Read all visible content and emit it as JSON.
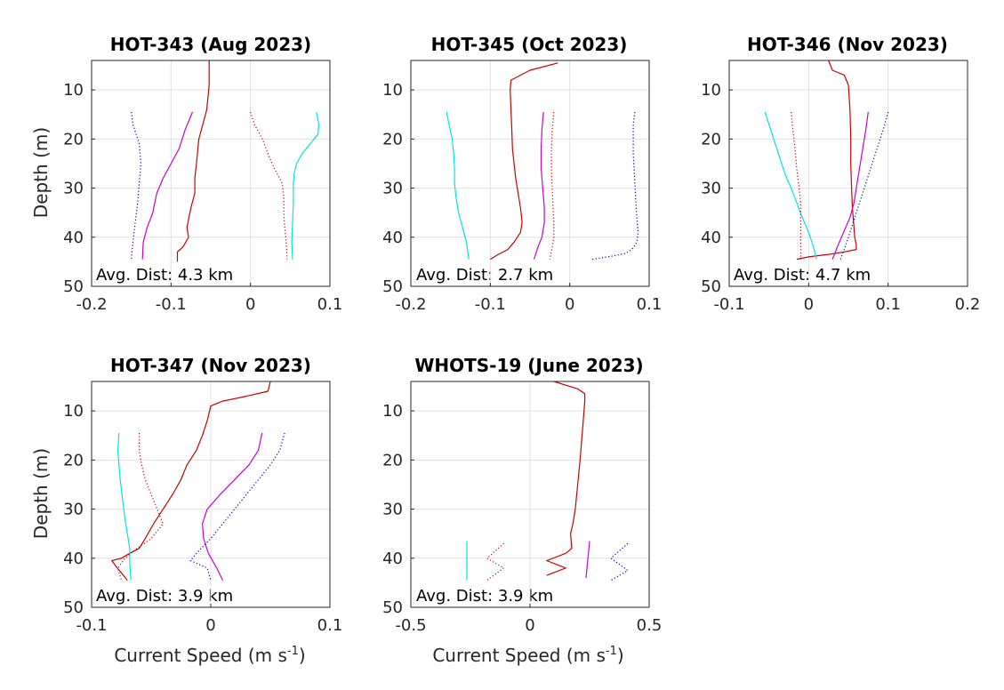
{
  "colors": {
    "red": "#cc0000",
    "magenta": "#cc00cc",
    "cyan": "#00e5e5",
    "blue": "#0000cc"
  },
  "chart_data": [
    {
      "type": "line",
      "title": "HOT-343 (Aug 2023)",
      "xlabel": "",
      "ylabel": "Depth (m)",
      "xlim": [
        -0.2,
        0.1
      ],
      "ylim": [
        50,
        4
      ],
      "y_reversed": true,
      "xticks": [
        "-0.2",
        "-0.1",
        "0",
        "0.1"
      ],
      "yticks": [
        "10",
        "20",
        "30",
        "40",
        "50"
      ],
      "grid": true,
      "annotation": "Avg. Dist: 4.3 km",
      "series": [
        {
          "color": "red",
          "style": "solid",
          "x": [
            -0.052,
            -0.052,
            -0.055,
            -0.06,
            -0.065,
            -0.068,
            -0.07,
            -0.07,
            -0.075,
            -0.08,
            -0.078,
            -0.085,
            -0.092,
            -0.092
          ],
          "y": [
            4,
            9,
            14,
            17,
            20,
            25,
            28,
            31,
            34,
            38,
            40,
            42,
            43,
            45
          ]
        },
        {
          "color": "magenta",
          "style": "solid",
          "x": [
            -0.073,
            -0.082,
            -0.09,
            -0.1,
            -0.11,
            -0.118,
            -0.123,
            -0.13,
            -0.135,
            -0.136
          ],
          "y": [
            14.5,
            18,
            22,
            25,
            28,
            31,
            35,
            38,
            41,
            44.5
          ]
        },
        {
          "color": "blue",
          "style": "dotted",
          "x": [
            -0.15,
            -0.148,
            -0.14,
            -0.138,
            -0.14,
            -0.142,
            -0.145,
            -0.148,
            -0.15
          ],
          "y": [
            14.5,
            17,
            21,
            25,
            29,
            33,
            37,
            41,
            44.5
          ]
        },
        {
          "color": "red",
          "style": "dotted",
          "x": [
            0.0,
            0.005,
            0.015,
            0.022,
            0.03,
            0.04,
            0.042,
            0.042,
            0.043,
            0.045,
            0.046
          ],
          "y": [
            14.5,
            17,
            20,
            23,
            26,
            29,
            32,
            35,
            38,
            41,
            44.5
          ]
        },
        {
          "color": "cyan",
          "style": "solid",
          "x": [
            0.083,
            0.086,
            0.085,
            0.075,
            0.065,
            0.058,
            0.055,
            0.054,
            0.054,
            0.053,
            0.052,
            0.053
          ],
          "y": [
            14.5,
            17,
            19,
            21,
            23,
            25,
            27,
            29,
            33,
            37,
            41,
            44.5
          ]
        }
      ]
    },
    {
      "type": "line",
      "title": "HOT-345 (Oct 2023)",
      "xlabel": "",
      "ylabel": "",
      "xlim": [
        -0.2,
        0.1
      ],
      "ylim": [
        50,
        4
      ],
      "y_reversed": true,
      "xticks": [
        "-0.2",
        "-0.1",
        "0",
        "0.1"
      ],
      "yticks": [
        "10",
        "20",
        "30",
        "40",
        "50"
      ],
      "grid": true,
      "annotation": "Avg. Dist: 2.7 km",
      "series": [
        {
          "color": "red",
          "style": "solid",
          "x": [
            -0.015,
            -0.05,
            -0.074,
            -0.075,
            -0.074,
            -0.073,
            -0.072,
            -0.07,
            -0.068,
            -0.065,
            -0.062,
            -0.06,
            -0.062,
            -0.07,
            -0.078,
            -0.09,
            -0.1
          ],
          "y": [
            4.5,
            6,
            8,
            10,
            14,
            18,
            22,
            25,
            28,
            31,
            34,
            37,
            39,
            41,
            42.5,
            43.5,
            44.5
          ]
        },
        {
          "color": "magenta",
          "style": "solid",
          "x": [
            -0.033,
            -0.035,
            -0.036,
            -0.036,
            -0.034,
            -0.032,
            -0.032,
            -0.035,
            -0.04,
            -0.045
          ],
          "y": [
            14.5,
            18,
            22,
            26,
            30,
            34,
            37,
            40,
            42,
            44.5
          ]
        },
        {
          "color": "red",
          "style": "dotted",
          "x": [
            -0.02,
            -0.022,
            -0.023,
            -0.023,
            -0.022,
            -0.021,
            -0.02,
            -0.02,
            -0.022,
            -0.025
          ],
          "y": [
            14.5,
            18,
            22,
            26,
            30,
            34,
            37,
            40,
            42,
            44.5
          ]
        },
        {
          "color": "cyan",
          "style": "solid",
          "x": [
            -0.155,
            -0.152,
            -0.148,
            -0.146,
            -0.145,
            -0.145,
            -0.143,
            -0.14,
            -0.135,
            -0.13,
            -0.127
          ],
          "y": [
            14.5,
            17,
            20,
            23,
            26,
            29,
            32,
            35,
            38,
            41,
            44.5
          ]
        },
        {
          "color": "blue",
          "style": "dotted",
          "x": [
            0.082,
            0.08,
            0.08,
            0.08,
            0.081,
            0.082,
            0.083,
            0.084,
            0.085,
            0.086,
            0.085,
            0.083,
            0.078,
            0.07,
            0.055,
            0.04,
            0.028
          ],
          "y": [
            14.5,
            17,
            20,
            23,
            26,
            29,
            32,
            35,
            37,
            39,
            40.5,
            41.5,
            42.5,
            43.3,
            43.8,
            44.2,
            44.5
          ]
        }
      ]
    },
    {
      "type": "line",
      "title": "HOT-346 (Nov 2023)",
      "xlabel": "",
      "ylabel": "",
      "xlim": [
        -0.1,
        0.2
      ],
      "ylim": [
        50,
        4
      ],
      "y_reversed": true,
      "xticks": [
        "-0.1",
        "0",
        "0.1",
        "0.2"
      ],
      "yticks": [
        "10",
        "20",
        "30",
        "40",
        "50"
      ],
      "grid": true,
      "annotation": "Avg. Dist: 4.7 km",
      "series": [
        {
          "color": "red",
          "style": "solid",
          "x": [
            0.025,
            0.03,
            0.045,
            0.05,
            0.052,
            0.053,
            0.053,
            0.054,
            0.055,
            0.057,
            0.058,
            0.06,
            0.06,
            0.045,
            0.025,
            0.0,
            -0.015
          ],
          "y": [
            4,
            6,
            7,
            9,
            14,
            20,
            25,
            30,
            34,
            38,
            40,
            41.5,
            42.5,
            43,
            43.5,
            44,
            44.5
          ]
        },
        {
          "color": "magenta",
          "style": "solid",
          "x": [
            0.075,
            0.072,
            0.069,
            0.066,
            0.063,
            0.06,
            0.057,
            0.052,
            0.044,
            0.036,
            0.03
          ],
          "y": [
            14.5,
            18,
            21,
            24,
            27,
            30,
            33,
            36,
            39,
            42,
            44.5
          ]
        },
        {
          "color": "blue",
          "style": "dotted",
          "x": [
            0.1,
            0.094,
            0.088,
            0.082,
            0.076,
            0.07,
            0.064,
            0.058,
            0.052,
            0.046,
            0.04
          ],
          "y": [
            14.5,
            18,
            21,
            24,
            27,
            30,
            33,
            36,
            39,
            42,
            44.5
          ]
        },
        {
          "color": "cyan",
          "style": "solid",
          "x": [
            -0.055,
            -0.048,
            -0.042,
            -0.036,
            -0.03,
            -0.022,
            -0.015,
            -0.008,
            0.0,
            0.006,
            0.01
          ],
          "y": [
            14.5,
            18,
            21,
            24,
            27,
            30,
            33,
            36,
            39,
            42,
            44.5
          ]
        },
        {
          "color": "red",
          "style": "dotted",
          "x": [
            -0.022,
            -0.02,
            -0.017,
            -0.015,
            -0.012,
            -0.01,
            -0.01,
            -0.01,
            -0.01,
            -0.01
          ],
          "y": [
            14.5,
            18,
            22,
            26,
            30,
            33,
            36,
            39,
            42,
            44.5
          ]
        }
      ]
    },
    {
      "type": "line",
      "title": "HOT-347 (Nov 2023)",
      "xlabel": "Current Speed (m s^-1)",
      "ylabel": "Depth (m)",
      "xlim": [
        -0.1,
        0.1
      ],
      "ylim": [
        50,
        4
      ],
      "y_reversed": true,
      "xticks": [
        "-0.1",
        "0",
        "0.1"
      ],
      "yticks": [
        "10",
        "20",
        "30",
        "40",
        "50"
      ],
      "grid": true,
      "annotation": "Avg. Dist: 3.9 km",
      "series": [
        {
          "color": "red",
          "style": "solid",
          "x": [
            0.05,
            0.048,
            0.03,
            0.01,
            0.0,
            -0.003,
            -0.007,
            -0.012,
            -0.02,
            -0.025,
            -0.032,
            -0.04,
            -0.048,
            -0.055,
            -0.06,
            -0.068,
            -0.075,
            -0.083,
            -0.08,
            -0.075,
            -0.07
          ],
          "y": [
            4,
            6,
            7,
            8,
            9,
            12,
            15,
            18,
            21,
            24,
            27,
            30,
            33,
            36,
            38,
            39,
            40,
            40.5,
            41.5,
            43,
            44.5
          ]
        },
        {
          "color": "magenta",
          "style": "solid",
          "x": [
            0.043,
            0.04,
            0.032,
            0.02,
            0.008,
            -0.003,
            -0.007,
            -0.006,
            -0.002,
            0.005,
            0.01
          ],
          "y": [
            14.5,
            18,
            21,
            24,
            27,
            30,
            33,
            36,
            39,
            42,
            44.5
          ]
        },
        {
          "color": "blue",
          "style": "dotted",
          "x": [
            0.062,
            0.058,
            0.05,
            0.04,
            0.03,
            0.02,
            0.01,
            0.0,
            -0.012,
            -0.017,
            -0.003,
            0.0
          ],
          "y": [
            14.5,
            18,
            21,
            24,
            27,
            30,
            33,
            36,
            39,
            40.5,
            42,
            44.5
          ]
        },
        {
          "color": "cyan",
          "style": "solid",
          "x": [
            -0.077,
            -0.078,
            -0.077,
            -0.076,
            -0.074,
            -0.072,
            -0.07,
            -0.068,
            -0.068,
            -0.067
          ],
          "y": [
            14.5,
            18,
            21,
            24,
            28,
            32,
            35,
            38,
            41,
            44.5
          ]
        },
        {
          "color": "red",
          "style": "dotted",
          "x": [
            -0.06,
            -0.06,
            -0.058,
            -0.055,
            -0.05,
            -0.045,
            -0.04,
            -0.05,
            -0.062,
            -0.072,
            -0.078,
            -0.075
          ],
          "y": [
            14.5,
            18,
            21,
            24,
            27,
            30,
            33,
            36,
            38,
            40,
            42,
            44.5
          ]
        }
      ]
    },
    {
      "type": "line",
      "title": "WHOTS-19 (June 2023)",
      "xlabel": "Current Speed (m s^-1)",
      "ylabel": "",
      "xlim": [
        -0.5,
        0.5
      ],
      "ylim": [
        50,
        4
      ],
      "y_reversed": true,
      "xticks": [
        "-0.5",
        "0",
        "0.5"
      ],
      "yticks": [
        "10",
        "20",
        "30",
        "40",
        "50"
      ],
      "grid": true,
      "annotation": "Avg. Dist: 3.9 km",
      "series": [
        {
          "color": "red",
          "style": "solid",
          "x": [
            0.1,
            0.2,
            0.23,
            0.23,
            0.22,
            0.21,
            0.2,
            0.19,
            0.18,
            0.175,
            0.17,
            0.172,
            0.175,
            0.15,
            0.07,
            0.15,
            0.07
          ],
          "y": [
            4,
            5.5,
            6.5,
            8,
            14,
            20,
            25,
            30,
            33,
            34,
            35,
            36,
            38,
            39,
            40.5,
            42,
            43.5
          ]
        },
        {
          "color": "magenta",
          "style": "solid",
          "x": [
            0.25,
            0.245,
            0.24,
            0.235
          ],
          "y": [
            36.5,
            39,
            41.5,
            44
          ]
        },
        {
          "color": "blue",
          "style": "dotted",
          "x": [
            0.41,
            0.34,
            0.41,
            0.34
          ],
          "y": [
            37,
            40,
            42.5,
            44.5
          ]
        },
        {
          "color": "cyan",
          "style": "solid",
          "x": [
            -0.265,
            -0.265
          ],
          "y": [
            36.5,
            44.5
          ]
        },
        {
          "color": "red",
          "style": "dotted",
          "x": [
            -0.11,
            -0.18,
            -0.11,
            -0.18
          ],
          "y": [
            37,
            40,
            42,
            44.5
          ]
        }
      ]
    }
  ]
}
